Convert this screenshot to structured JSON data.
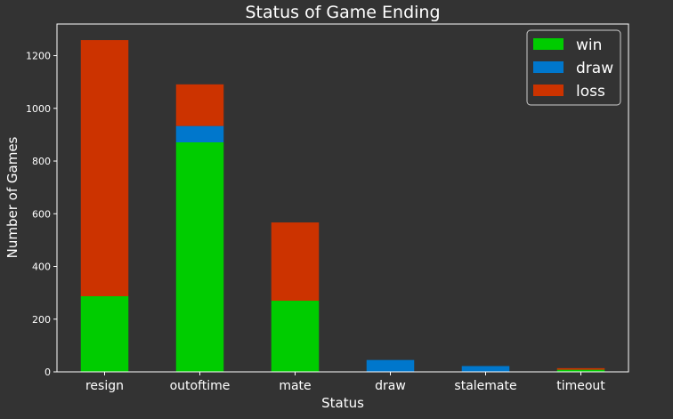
{
  "chart_data": {
    "type": "bar",
    "stacked": true,
    "title": "Status of Game Ending",
    "xlabel": "Status",
    "ylabel": "Number of Games",
    "categories": [
      "resign",
      "outoftime",
      "mate",
      "draw",
      "stalemate",
      "timeout"
    ],
    "series": [
      {
        "name": "win",
        "color": "#00CC00",
        "values": [
          287,
          871,
          270,
          0,
          0,
          8
        ]
      },
      {
        "name": "draw",
        "color": "#0077CC",
        "values": [
          0,
          62,
          0,
          45,
          22,
          0
        ]
      },
      {
        "name": "loss",
        "color": "#CC3300",
        "values": [
          972,
          158,
          297,
          0,
          0,
          6
        ]
      }
    ],
    "ylim": [
      0,
      1320
    ],
    "yticks": [
      0,
      200,
      400,
      600,
      800,
      1000,
      1200
    ],
    "grid": false,
    "legend_position": "top-right",
    "background_color": "#333333",
    "text_color": "#FFFFFF"
  }
}
